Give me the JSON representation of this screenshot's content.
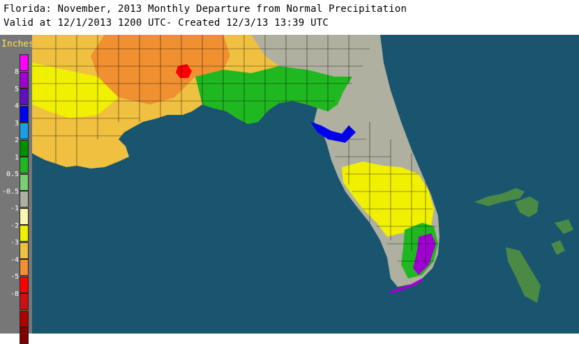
{
  "header": {
    "title": "Florida: November, 2013 Monthly Departure from Normal Precipitation",
    "subtitle": "Valid at 12/1/2013 1200 UTC- Created 12/3/13 13:39 UTC"
  },
  "legend": {
    "units": "Inches",
    "swatch_colors": [
      "#ff00ff",
      "#a000d0",
      "#6010c0",
      "#0000f0",
      "#18a0e8",
      "#009000",
      "#20b820",
      "#78d070",
      "#b0b0a0",
      "#f8f8b0",
      "#f0f000",
      "#f0c040",
      "#f09030",
      "#ff0000",
      "#d01010",
      "#b00000",
      "#800000"
    ],
    "tick_labels": [
      "8",
      "5",
      "4",
      "3",
      "2",
      "1",
      "0.5",
      "-0.5",
      "-1",
      "-2",
      "-3",
      "-4",
      "-5",
      "-8"
    ]
  },
  "map": {
    "ocean_color": "#1a5570",
    "land_colors": {
      "grey_normal": "#b0b0a0",
      "green_wet": "#20b820",
      "yellow_dry": "#f0f000",
      "orange_dry": "#f0c040",
      "deep_orange": "#f09030",
      "red": "#ff0000",
      "blue": "#0000f0",
      "purple": "#a000d0",
      "bahamas": "#4a8a44"
    }
  }
}
